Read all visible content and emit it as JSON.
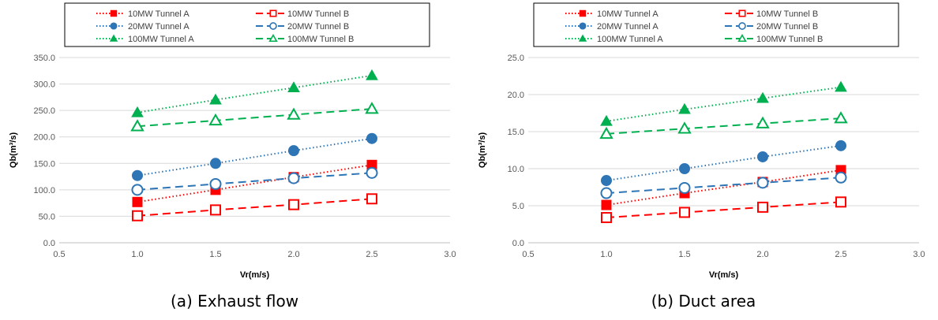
{
  "chart_data": [
    {
      "type": "line",
      "caption": "(a) Exhaust flow",
      "xlabel": "Vr(m/s)",
      "ylabel": "Qb(m³/s)",
      "xlim": [
        0.5,
        3.0
      ],
      "ylim": [
        0,
        350
      ],
      "xticks": [
        "0.5",
        "1.0",
        "1.5",
        "2.0",
        "2.5",
        "3.0"
      ],
      "yticks": [
        "0.0",
        "50.0",
        "100.0",
        "150.0",
        "200.0",
        "250.0",
        "300.0",
        "350.0"
      ],
      "grid": "horizontal",
      "legend_position": "top",
      "x": [
        1.0,
        1.5,
        2.0,
        2.5
      ],
      "series": [
        {
          "name": "10MW Tunnel A",
          "color": "#ff0000",
          "marker": "square-filled",
          "dash": "dotted",
          "values": [
            77,
            100,
            124,
            147
          ]
        },
        {
          "name": "10MW Tunnel B",
          "color": "#ff0000",
          "marker": "square-open",
          "dash": "dashed",
          "values": [
            51,
            62,
            72,
            83
          ]
        },
        {
          "name": "20MW Tunnel A",
          "color": "#2e75b6",
          "marker": "circle-filled",
          "dash": "dotted",
          "values": [
            127,
            150,
            174,
            197
          ]
        },
        {
          "name": "20MW Tunnel B",
          "color": "#2e75b6",
          "marker": "circle-open",
          "dash": "dashed",
          "values": [
            100,
            111,
            122,
            132
          ]
        },
        {
          "name": "100MW Tunnel A",
          "color": "#00b050",
          "marker": "triangle-filled",
          "dash": "dotted",
          "values": [
            246,
            270,
            293,
            316
          ]
        },
        {
          "name": "100MW Tunnel B",
          "color": "#00b050",
          "marker": "triangle-open",
          "dash": "dashed",
          "values": [
            220,
            231,
            242,
            253
          ]
        }
      ]
    },
    {
      "type": "line",
      "caption": "(b) Duct area",
      "xlabel": "Vr(m/s)",
      "ylabel": "Qb(m³/s)",
      "xlim": [
        0.5,
        3.0
      ],
      "ylim": [
        0,
        25
      ],
      "xticks": [
        "0.5",
        "1.0",
        "1.5",
        "2.0",
        "2.5",
        "3.0"
      ],
      "yticks": [
        "0.0",
        "5.0",
        "10.0",
        "15.0",
        "20.0",
        "25.0"
      ],
      "grid": "horizontal",
      "legend_position": "top",
      "x": [
        1.0,
        1.5,
        2.0,
        2.5
      ],
      "series": [
        {
          "name": "10MW Tunnel A",
          "color": "#ff0000",
          "marker": "square-filled",
          "dash": "dotted",
          "values": [
            5.1,
            6.7,
            8.2,
            9.8
          ]
        },
        {
          "name": "10MW Tunnel B",
          "color": "#ff0000",
          "marker": "square-open",
          "dash": "dashed",
          "values": [
            3.4,
            4.1,
            4.8,
            5.5
          ]
        },
        {
          "name": "20MW Tunnel A",
          "color": "#2e75b6",
          "marker": "circle-filled",
          "dash": "dotted",
          "values": [
            8.4,
            10.0,
            11.6,
            13.1
          ]
        },
        {
          "name": "20MW Tunnel B",
          "color": "#2e75b6",
          "marker": "circle-open",
          "dash": "dashed",
          "values": [
            6.7,
            7.4,
            8.1,
            8.8
          ]
        },
        {
          "name": "100MW Tunnel A",
          "color": "#00b050",
          "marker": "triangle-filled",
          "dash": "dotted",
          "values": [
            16.4,
            18.0,
            19.5,
            21.0
          ]
        },
        {
          "name": "100MW Tunnel B",
          "color": "#00b050",
          "marker": "triangle-open",
          "dash": "dashed",
          "values": [
            14.7,
            15.4,
            16.1,
            16.8
          ]
        }
      ]
    }
  ]
}
